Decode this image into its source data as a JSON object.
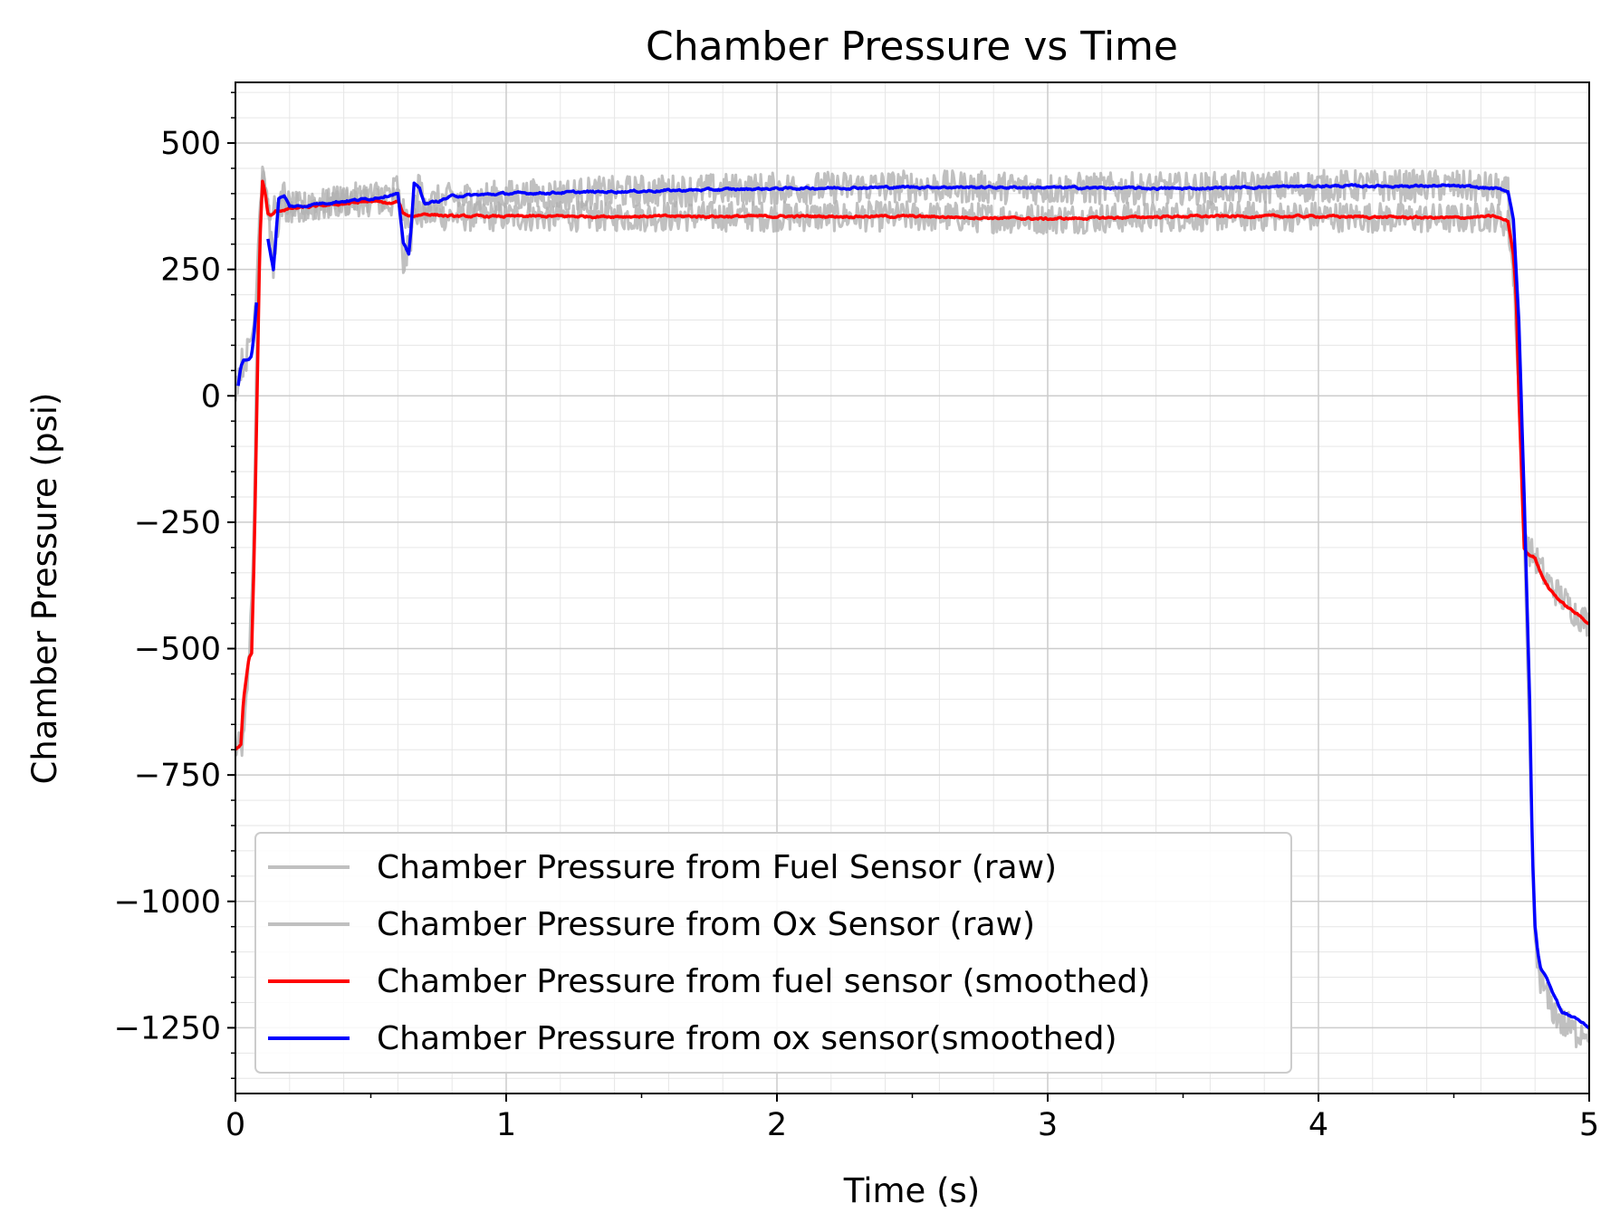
{
  "chart_data": {
    "type": "line",
    "title": "Chamber Pressure vs Time",
    "xlabel": "Time (s)",
    "ylabel": "Chamber Pressure (psi)",
    "xlim": [
      0,
      5
    ],
    "ylim": [
      -1380,
      620
    ],
    "x_ticks": [
      0,
      1,
      2,
      3,
      4,
      5
    ],
    "x_tick_labels": [
      "0",
      "1",
      "2",
      "3",
      "4",
      "5"
    ],
    "y_ticks": [
      500,
      250,
      0,
      -250,
      -500,
      -750,
      -1000,
      -1250
    ],
    "y_tick_labels": [
      "500",
      "250",
      "0",
      "−250",
      "−500",
      "−750",
      "−1000",
      "−1250"
    ],
    "grid": true,
    "minor_grid": true,
    "legend_position": "lower-left",
    "series": [
      {
        "name": "Chamber Pressure from Fuel Sensor (raw)",
        "color": "#b0b0b0",
        "noise": 30,
        "x": [
          0.0,
          0.03,
          0.05,
          0.07,
          0.08,
          0.09,
          0.1,
          0.12,
          0.15,
          0.2,
          0.3,
          0.4,
          0.5,
          0.58,
          0.6,
          0.62,
          0.65,
          0.7,
          0.8,
          1.0,
          1.5,
          2.0,
          2.5,
          3.0,
          3.5,
          4.0,
          4.5,
          4.65,
          4.7,
          4.73,
          4.75,
          4.77,
          4.8,
          4.85,
          4.9,
          4.95,
          5.0
        ],
        "y": [
          -700,
          -690,
          -520,
          -250,
          150,
          380,
          430,
          370,
          365,
          370,
          380,
          385,
          385,
          380,
          390,
          365,
          355,
          360,
          355,
          355,
          355,
          355,
          355,
          350,
          355,
          355,
          350,
          355,
          340,
          200,
          -100,
          -300,
          -320,
          -370,
          -400,
          -430,
          -450
        ]
      },
      {
        "name": "Chamber Pressure from Ox Sensor (raw)",
        "color": "#b0b0b0",
        "noise": 32,
        "x": [
          0.0,
          0.02,
          0.05,
          0.07,
          0.08,
          0.1,
          0.12,
          0.14,
          0.16,
          0.18,
          0.2,
          0.3,
          0.4,
          0.5,
          0.58,
          0.6,
          0.62,
          0.64,
          0.66,
          0.68,
          0.7,
          0.8,
          1.0,
          1.5,
          2.0,
          2.5,
          3.0,
          3.5,
          4.0,
          4.5,
          4.65,
          4.7,
          4.72,
          4.75,
          4.78,
          4.8,
          4.82,
          4.85,
          4.9,
          4.95,
          5.0
        ],
        "y": [
          20,
          60,
          90,
          150,
          260,
          460,
          380,
          250,
          360,
          400,
          370,
          375,
          385,
          395,
          400,
          420,
          260,
          290,
          360,
          420,
          380,
          390,
          395,
          405,
          410,
          415,
          410,
          410,
          415,
          415,
          410,
          400,
          250,
          -100,
          -700,
          -1100,
          -1150,
          -1200,
          -1240,
          -1260,
          -1250
        ]
      },
      {
        "name": "Chamber Pressure from fuel sensor (smoothed)",
        "color": "#ff0000",
        "noise": 5,
        "x": [
          0.0,
          0.02,
          0.03,
          0.05,
          0.06,
          0.07,
          0.08,
          0.09,
          0.1,
          0.11,
          0.12,
          0.13,
          0.15,
          0.2,
          0.3,
          0.4,
          0.5,
          0.58,
          0.6,
          0.62,
          0.65,
          0.7,
          0.8,
          1.0,
          1.5,
          2.0,
          2.5,
          3.0,
          3.5,
          4.0,
          4.5,
          4.65,
          4.7,
          4.72,
          4.73,
          4.74,
          4.75,
          4.76,
          4.77,
          4.8,
          4.82,
          4.85,
          4.9,
          4.95,
          5.0
        ],
        "y": [
          -700,
          -690,
          -600,
          -520,
          -510,
          -300,
          0,
          300,
          425,
          400,
          360,
          355,
          365,
          370,
          375,
          380,
          385,
          380,
          385,
          360,
          355,
          360,
          355,
          355,
          355,
          355,
          355,
          350,
          355,
          355,
          352,
          355,
          345,
          280,
          200,
          0,
          -150,
          -300,
          -310,
          -320,
          -350,
          -380,
          -410,
          -430,
          -450
        ]
      },
      {
        "name": "Chamber Pressure from ox sensor(smoothed)",
        "color": "#0000ff",
        "noise": 5,
        "segments": [
          {
            "x": [
              0.01,
              0.02,
              0.03,
              0.05,
              0.06,
              0.07,
              0.08
            ],
            "y": [
              20,
              60,
              70,
              70,
              80,
              130,
              200
            ]
          },
          {
            "x": [
              0.12,
              0.14,
              0.16,
              0.18,
              0.2,
              0.25,
              0.3,
              0.4,
              0.5,
              0.55,
              0.59,
              0.6,
              0.62,
              0.64,
              0.65,
              0.66,
              0.68,
              0.7,
              0.75,
              0.8,
              1.0,
              1.5,
              2.0,
              2.5,
              3.0,
              3.5,
              4.0,
              4.5,
              4.65,
              4.7,
              4.72,
              4.74,
              4.76,
              4.78,
              4.79,
              4.8,
              4.81,
              4.82,
              4.85,
              4.9,
              4.95,
              5.0
            ],
            "y": [
              310,
              250,
              390,
              395,
              375,
              375,
              380,
              385,
              390,
              395,
              400,
              400,
              300,
              280,
              340,
              420,
              410,
              380,
              385,
              395,
              400,
              405,
              410,
              413,
              412,
              410,
              415,
              415,
              410,
              405,
              350,
              150,
              -200,
              -600,
              -900,
              -1050,
              -1100,
              -1130,
              -1160,
              -1220,
              -1230,
              -1250
            ]
          }
        ]
      }
    ]
  }
}
